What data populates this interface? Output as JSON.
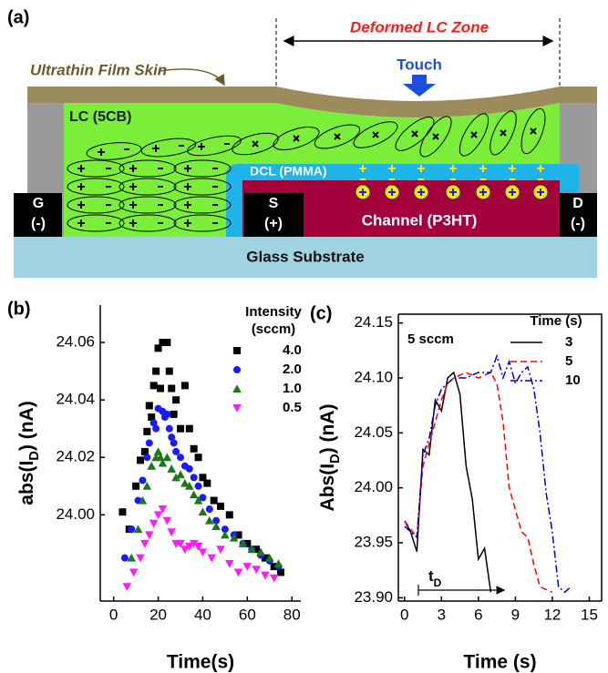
{
  "diagram": {
    "panel": "(a)",
    "zone": "Deformed LC Zone",
    "skin": "Ultrathin Film Skin",
    "touch": "Touch",
    "lc": "LC (5CB)",
    "dcl": "DCL (PMMA)",
    "gate": [
      "G",
      "(-)"
    ],
    "source": [
      "S",
      "(+)"
    ],
    "channel": "Channel (P3HT)",
    "drain": [
      "D",
      "(-)"
    ],
    "substrate": "Glass Substrate"
  },
  "chart_data": [
    {
      "type": "scatter",
      "panel": "(b)",
      "xlabel": "Time(s)",
      "ylabel": [
        "abs(I",
        "D",
        ") (nA)"
      ],
      "xlim": [
        -6,
        84
      ],
      "ylim": [
        23.97,
        24.073
      ],
      "xticks": [
        0,
        20,
        40,
        60,
        80
      ],
      "yticks": [
        {
          "value": 24.0,
          "label": "24.00"
        },
        24.02,
        24.04,
        24.06
      ],
      "legend_title": [
        "Intensity",
        "(sccm)"
      ],
      "legend": "upper right",
      "box": false,
      "series": [
        {
          "name": "4.0",
          "color": "#000000",
          "marker": "square",
          "x": [
            4,
            7,
            10,
            12,
            14,
            15,
            16,
            17,
            18,
            19,
            20,
            21,
            22,
            24,
            25,
            26,
            27,
            28,
            30,
            32,
            34,
            36,
            38,
            40,
            42,
            45,
            48,
            52,
            56,
            60,
            64,
            68,
            72,
            75
          ],
          "values": [
            24.001,
            23.995,
            24.01,
            24.019,
            24.022,
            24.029,
            24.038,
            24.034,
            24.045,
            24.05,
            24.058,
            24.044,
            24.06,
            24.06,
            24.05,
            24.044,
            24.035,
            24.04,
            24.03,
            24.045,
            24.03,
            24.023,
            24.02,
            24.013,
            24.011,
            24.005,
            24.003,
            24.0,
            23.993,
            23.99,
            23.988,
            23.985,
            23.982,
            23.98
          ]
        },
        {
          "name": "2.0",
          "color": "#1a1aff",
          "marker": "circle",
          "x": [
            5,
            8,
            11,
            13,
            15,
            16,
            18,
            19,
            20,
            22,
            23,
            24,
            25,
            26,
            27,
            28,
            30,
            32,
            34,
            36,
            38,
            40,
            43,
            46,
            50,
            54,
            58,
            62,
            66,
            70,
            74
          ],
          "values": [
            23.985,
            23.995,
            24.005,
            24.012,
            24.02,
            24.025,
            24.032,
            24.03,
            24.037,
            24.036,
            24.034,
            24.035,
            24.03,
            24.027,
            24.025,
            24.022,
            24.02,
            24.017,
            24.016,
            24.013,
            24.01,
            24.006,
            24.002,
            23.998,
            23.995,
            23.993,
            23.99,
            23.988,
            23.986,
            23.984,
            23.982
          ]
        },
        {
          "name": "1.0",
          "color": "#1a7a1a",
          "marker": "triangle",
          "x": [
            8,
            11,
            13,
            15,
            17,
            19,
            20,
            21,
            22,
            24,
            26,
            28,
            30,
            32,
            34,
            36,
            38,
            40,
            43,
            46,
            50,
            54,
            58,
            62,
            66,
            70,
            74
          ],
          "values": [
            23.985,
            23.995,
            24.005,
            24.01,
            24.017,
            24.02,
            24.022,
            24.02,
            24.018,
            24.02,
            24.016,
            24.013,
            24.014,
            24.011,
            24.01,
            24.007,
            24.005,
            24.001,
            23.998,
            23.996,
            23.993,
            23.992,
            23.99,
            23.988,
            23.987,
            23.985,
            23.983
          ]
        },
        {
          "name": "0.5",
          "color": "#ff1aff",
          "marker": "triangle-down",
          "x": [
            6,
            9,
            12,
            14,
            16,
            18,
            20,
            22,
            24,
            26,
            28,
            30,
            32,
            34,
            36,
            38,
            40,
            44,
            48,
            52,
            56,
            60,
            64,
            68,
            72
          ],
          "values": [
            23.975,
            23.98,
            23.985,
            23.99,
            23.993,
            23.997,
            24.0,
            24.002,
            23.998,
            23.994,
            23.99,
            23.99,
            23.988,
            23.989,
            23.99,
            23.989,
            23.987,
            23.985,
            23.988,
            23.983,
            23.98,
            23.982,
            23.981,
            23.979,
            23.978
          ]
        }
      ]
    },
    {
      "type": "line",
      "panel": "(c)",
      "xlabel": "Time (s)",
      "ylabel": [
        "Abs(I",
        "D",
        ") (nA)"
      ],
      "xlim": [
        -0.5,
        16
      ],
      "ylim": [
        23.897,
        24.158
      ],
      "xticks": [
        0,
        3,
        6,
        9,
        12,
        15
      ],
      "yticks": [
        {
          "value": 23.9,
          "label": "23.90"
        },
        23.95,
        {
          "value": 24.0,
          "label": "24.00"
        },
        24.05,
        {
          "value": 24.1,
          "label": "24.10"
        },
        24.15
      ],
      "legend_title": [
        "Time (s)"
      ],
      "legend": "upper right",
      "box": true,
      "annotations": [
        "5 sccm",
        [
          "t",
          "D"
        ]
      ],
      "series": [
        {
          "name": "3",
          "color": "#000000",
          "dash": "solid",
          "x": [
            0,
            0.5,
            1,
            1.5,
            2,
            2.5,
            3,
            3.5,
            4,
            4.5,
            5,
            5.5,
            6,
            6.5,
            7
          ],
          "values": [
            23.97,
            23.96,
            23.942,
            24.035,
            24.03,
            24.08,
            24.07,
            24.1,
            24.105,
            24.085,
            24.02,
            23.99,
            23.935,
            23.945,
            23.905
          ]
        },
        {
          "name": "5",
          "color": "#ff0000",
          "dash": "dashed",
          "x": [
            0,
            1,
            1.5,
            2,
            3,
            3.5,
            4,
            5,
            6,
            7,
            7.5,
            8,
            8.5,
            9,
            9.5,
            10,
            10.5,
            11,
            12
          ],
          "values": [
            23.97,
            23.955,
            24.02,
            24.04,
            24.08,
            24.095,
            24.1,
            24.105,
            24.1,
            24.105,
            24.095,
            24.06,
            24.0,
            23.98,
            23.96,
            23.955,
            23.93,
            23.91,
            23.905
          ]
        },
        {
          "name": "10",
          "color": "#0000cc",
          "dash": "dashdot",
          "x": [
            0,
            1,
            1.5,
            2,
            2.5,
            3,
            3.5,
            4,
            5,
            6,
            7,
            7.5,
            8,
            8.5,
            9,
            9.5,
            10,
            10.5,
            11,
            11.5,
            12,
            12.5,
            13,
            13.5
          ],
          "values": [
            23.965,
            23.955,
            24.03,
            24.045,
            24.075,
            24.09,
            24.095,
            24.1,
            24.1,
            24.105,
            24.105,
            24.12,
            24.1,
            24.115,
            24.095,
            24.105,
            24.11,
            24.09,
            24.05,
            23.995,
            23.96,
            23.91,
            23.905,
            23.91
          ]
        }
      ]
    }
  ]
}
